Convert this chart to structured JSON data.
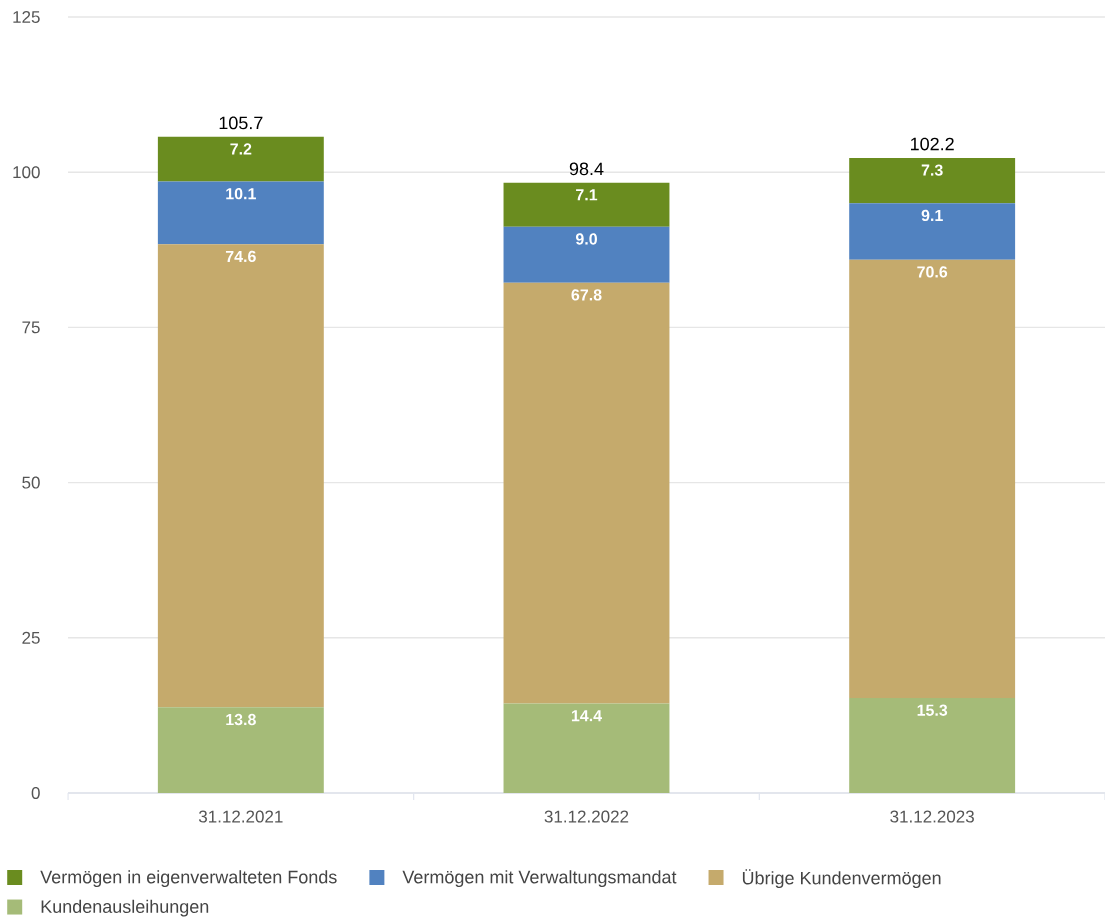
{
  "chart_data": {
    "type": "bar",
    "stacked": true,
    "categories": [
      "31.12.2021",
      "31.12.2022",
      "31.12.2023"
    ],
    "series": [
      {
        "name": "Kundenausleihungen",
        "color": "#a5bb78",
        "values": [
          13.8,
          14.4,
          15.3
        ],
        "value_labels": [
          "13.8",
          "14.4",
          "15.3"
        ]
      },
      {
        "name": "Übrige Kundenvermögen",
        "color": "#c5aa6c",
        "values": [
          74.6,
          67.8,
          70.6
        ],
        "value_labels": [
          "74.6",
          "67.8",
          "70.6"
        ]
      },
      {
        "name": "Vermögen mit Verwaltungsmandat",
        "color": "#5182c0",
        "values": [
          10.1,
          9.0,
          9.1
        ],
        "value_labels": [
          "10.1",
          "9.0",
          "9.1"
        ]
      },
      {
        "name": "Vermögen in eigenverwalteten Fonds",
        "color": "#6a8c1f",
        "values": [
          7.2,
          7.1,
          7.3
        ],
        "value_labels": [
          "7.2",
          "7.1",
          "7.3"
        ]
      }
    ],
    "totals": [
      "105.7",
      "98.4",
      "102.2"
    ],
    "ylim": [
      0,
      125
    ],
    "yticks": [
      0,
      25,
      50,
      75,
      100,
      125
    ],
    "grid": "y",
    "legend": "bottom"
  }
}
